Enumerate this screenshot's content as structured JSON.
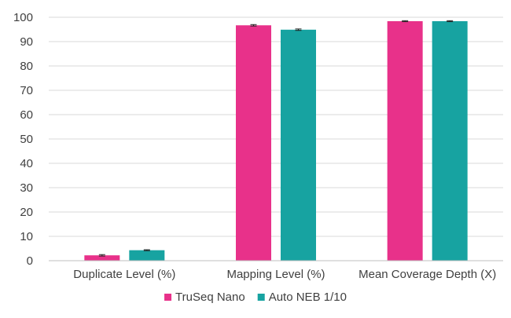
{
  "chart_data": {
    "type": "bar",
    "categories": [
      "Duplicate Level (%)",
      "Mapping Level (%)",
      "Mean Coverage Depth (X)"
    ],
    "series": [
      {
        "name": "TruSeq Nano",
        "color": "#E8318A",
        "values": [
          2.2,
          96.7,
          98.4
        ],
        "errors": [
          0.3,
          0.3,
          0.2
        ]
      },
      {
        "name": "Auto NEB 1/10",
        "color": "#17A3A1",
        "values": [
          4.3,
          94.9,
          98.4
        ],
        "errors": [
          0.2,
          0.3,
          0.2
        ]
      }
    ],
    "ylim": [
      0,
      100
    ],
    "yticks": [
      "0",
      "10",
      "20",
      "30",
      "40",
      "50",
      "60",
      "70",
      "80",
      "90",
      "100"
    ],
    "grid": true,
    "legend_position": "bottom"
  }
}
